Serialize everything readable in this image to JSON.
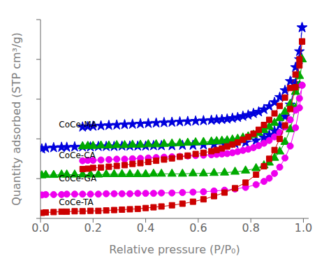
{
  "chart_data": {
    "type": "line",
    "xlabel": "Relative pressure (P/P₀)",
    "ylabel": "Quantity adsorbed (STP cm³/g)",
    "xlim": [
      0.0,
      1.02
    ],
    "xticks": [
      {
        "value": 0,
        "label": "0.0"
      },
      0.2,
      0.4,
      0.6,
      0.8,
      {
        "value": 1,
        "label": "1.0"
      }
    ],
    "ylim": [
      0,
      500
    ],
    "yticks": [
      0,
      100,
      200,
      300,
      400,
      500
    ],
    "tick_labels": "x",
    "grid": false,
    "series": [
      {
        "color": "#0000dd",
        "marker": "star",
        "line_style": "solid",
        "x": [
          0.005,
          0.02,
          0.05,
          0.08,
          0.1,
          0.13,
          0.16,
          0.19,
          0.22,
          0.25,
          0.28,
          0.31,
          0.34,
          0.37,
          0.4,
          0.43,
          0.46,
          0.5,
          0.54,
          0.58,
          0.62,
          0.66,
          0.7,
          0.74,
          0.78,
          0.82,
          0.85,
          0.87,
          0.89,
          0.91,
          0.93,
          0.95,
          0.97,
          0.985,
          0.995
        ],
        "values": [
          175,
          177,
          178,
          179,
          179,
          180,
          180,
          180,
          181,
          181,
          181,
          182,
          182,
          182,
          182,
          183,
          183,
          183,
          184,
          184,
          185,
          186,
          187,
          188,
          191,
          196,
          203,
          210,
          220,
          234,
          256,
          286,
          340,
          400,
          480
        ]
      },
      {
        "color": "#0000dd",
        "marker": "star",
        "line_style": "dashed",
        "x": [
          0.995,
          0.985,
          0.97,
          0.95,
          0.93,
          0.91,
          0.89,
          0.87,
          0.85,
          0.83,
          0.81,
          0.79,
          0.77,
          0.75,
          0.73,
          0.71,
          0.69,
          0.67,
          0.65,
          0.62,
          0.59,
          0.56,
          0.53,
          0.5,
          0.47,
          0.44,
          0.41,
          0.38,
          0.35,
          0.32,
          0.29,
          0.26,
          0.23,
          0.2,
          0.18,
          0.16
        ],
        "values": [
          480,
          420,
          380,
          345,
          322,
          305,
          292,
          282,
          274,
          268,
          264,
          260,
          257,
          254,
          252,
          250,
          249,
          248,
          247,
          246,
          245,
          244,
          243,
          242,
          241,
          240,
          239,
          238,
          237,
          236,
          235,
          234,
          233,
          232,
          231,
          230
        ]
      },
      {
        "color": "#00aa00",
        "marker": "triangle",
        "line_style": "solid",
        "x": [
          0.005,
          0.02,
          0.05,
          0.08,
          0.1,
          0.13,
          0.16,
          0.19,
          0.22,
          0.25,
          0.28,
          0.31,
          0.34,
          0.37,
          0.4,
          0.43,
          0.46,
          0.5,
          0.54,
          0.58,
          0.62,
          0.66,
          0.7,
          0.74,
          0.78,
          0.82,
          0.85,
          0.87,
          0.89,
          0.91,
          0.93,
          0.95,
          0.97,
          0.985,
          0.995
        ],
        "values": [
          108,
          109,
          109,
          110,
          110,
          110,
          110,
          110,
          110,
          111,
          111,
          111,
          111,
          111,
          111,
          112,
          112,
          112,
          112,
          113,
          113,
          114,
          115,
          117,
          120,
          126,
          133,
          140,
          152,
          168,
          192,
          224,
          277,
          335,
          400
        ]
      },
      {
        "color": "#00aa00",
        "marker": "triangle",
        "line_style": "dashed",
        "x": [
          0.995,
          0.985,
          0.97,
          0.95,
          0.93,
          0.91,
          0.89,
          0.87,
          0.85,
          0.83,
          0.81,
          0.79,
          0.77,
          0.75,
          0.73,
          0.71,
          0.69,
          0.67,
          0.65,
          0.62,
          0.59,
          0.56,
          0.53,
          0.5,
          0.47,
          0.44,
          0.41,
          0.38,
          0.35,
          0.32,
          0.29,
          0.26,
          0.23,
          0.2,
          0.18,
          0.16
        ],
        "values": [
          400,
          358,
          318,
          288,
          268,
          252,
          240,
          230,
          222,
          215,
          210,
          206,
          203,
          200,
          198,
          196,
          195,
          194,
          193,
          192,
          191,
          190,
          189,
          188,
          187,
          186,
          186,
          185,
          185,
          184,
          184,
          183,
          183,
          182,
          182,
          181
        ]
      },
      {
        "color": "#ee00ee",
        "marker": "circle",
        "line_style": "solid",
        "x": [
          0.005,
          0.02,
          0.05,
          0.08,
          0.1,
          0.13,
          0.16,
          0.19,
          0.22,
          0.25,
          0.28,
          0.31,
          0.34,
          0.37,
          0.4,
          0.43,
          0.46,
          0.5,
          0.54,
          0.58,
          0.62,
          0.66,
          0.7,
          0.74,
          0.78,
          0.82,
          0.85,
          0.87,
          0.89,
          0.91,
          0.93,
          0.95,
          0.97,
          0.985,
          0.995
        ],
        "values": [
          59,
          60,
          60,
          60,
          61,
          61,
          61,
          61,
          61,
          62,
          62,
          62,
          62,
          63,
          63,
          63,
          64,
          64,
          65,
          66,
          67,
          69,
          71,
          74,
          78,
          85,
          93,
          101,
          113,
          129,
          152,
          182,
          228,
          278,
          335
        ]
      },
      {
        "color": "#ee00ee",
        "marker": "circle",
        "line_style": "dashed",
        "x": [
          0.995,
          0.985,
          0.97,
          0.95,
          0.93,
          0.91,
          0.89,
          0.87,
          0.85,
          0.83,
          0.81,
          0.79,
          0.77,
          0.75,
          0.73,
          0.71,
          0.69,
          0.67,
          0.65,
          0.62,
          0.59,
          0.56,
          0.53,
          0.5,
          0.47,
          0.44,
          0.41,
          0.38,
          0.35,
          0.32,
          0.29,
          0.26,
          0.23,
          0.2,
          0.18,
          0.16
        ],
        "values": [
          335,
          302,
          272,
          248,
          230,
          216,
          205,
          196,
          189,
          183,
          178,
          174,
          171,
          168,
          165,
          163,
          162,
          161,
          160,
          159,
          158,
          157,
          156,
          155,
          154,
          153,
          152,
          151,
          150,
          149,
          149,
          148,
          147,
          146,
          146,
          145
        ]
      },
      {
        "color": "#cc0000",
        "marker": "square",
        "line_style": "solid",
        "x": [
          0.005,
          0.02,
          0.05,
          0.08,
          0.1,
          0.13,
          0.16,
          0.19,
          0.22,
          0.25,
          0.28,
          0.31,
          0.34,
          0.37,
          0.4,
          0.43,
          0.46,
          0.5,
          0.54,
          0.58,
          0.62,
          0.66,
          0.7,
          0.74,
          0.78,
          0.82,
          0.85,
          0.87,
          0.89,
          0.91,
          0.93,
          0.95,
          0.97,
          0.985,
          0.995
        ],
        "values": [
          14,
          15,
          16,
          17,
          17,
          18,
          18,
          19,
          19,
          20,
          21,
          22,
          23,
          24,
          26,
          28,
          30,
          33,
          37,
          42,
          48,
          56,
          65,
          76,
          90,
          110,
          131,
          150,
          172,
          200,
          234,
          275,
          330,
          385,
          445
        ]
      },
      {
        "color": "#cc0000",
        "marker": "square",
        "line_style": "dashed",
        "x": [
          0.995,
          0.985,
          0.97,
          0.95,
          0.93,
          0.91,
          0.89,
          0.87,
          0.85,
          0.83,
          0.81,
          0.79,
          0.77,
          0.75,
          0.73,
          0.71,
          0.69,
          0.67,
          0.65,
          0.62,
          0.59,
          0.56,
          0.53,
          0.5,
          0.47,
          0.44,
          0.41,
          0.38,
          0.35,
          0.32,
          0.29,
          0.26,
          0.23,
          0.2,
          0.18,
          0.16
        ],
        "values": [
          445,
          400,
          362,
          328,
          304,
          283,
          264,
          248,
          235,
          223,
          213,
          205,
          198,
          191,
          186,
          181,
          176,
          172,
          169,
          165,
          162,
          158,
          155,
          151,
          148,
          145,
          142,
          139,
          137,
          134,
          132,
          130,
          128,
          127,
          125,
          124
        ]
      }
    ],
    "annotations": [
      {
        "text": "CoCe-MA",
        "x": 0.07,
        "y": 225
      },
      {
        "text": "CoCe-CA",
        "x": 0.07,
        "y": 148
      },
      {
        "text": "CoCe-GA",
        "x": 0.07,
        "y": 90
      },
      {
        "text": "CoCe-TA",
        "x": 0.07,
        "y": 30
      }
    ]
  }
}
